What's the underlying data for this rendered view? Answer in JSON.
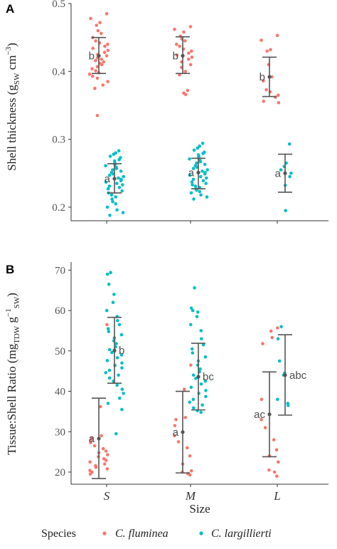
{
  "chart_data": [
    {
      "type": "scatter",
      "panel": "A",
      "ylabel_main": "Shell thickness (g",
      "ylabel_sub": "SW",
      "ylabel_unit": " cm",
      "ylabel_sup": "−3",
      "ylabel_close": ")",
      "ylim": [
        0.18,
        0.5
      ],
      "yticks": [
        0.2,
        0.3,
        0.4,
        0.5
      ],
      "ytick_labels": [
        "0.2",
        "0.3",
        "0.4",
        "0.5"
      ],
      "categories": [
        "S",
        "M",
        "L"
      ],
      "series": [
        {
          "name": "C. fluminea",
          "color": "#F8766D",
          "summary": [
            {
              "category": "S",
              "mean": 0.423,
              "low": 0.397,
              "high": 0.45,
              "letter": "b"
            },
            {
              "category": "M",
              "mean": 0.423,
              "low": 0.397,
              "high": 0.451,
              "letter": "b"
            },
            {
              "category": "L",
              "mean": 0.392,
              "low": 0.363,
              "high": 0.421,
              "letter": "b"
            }
          ],
          "points": [
            {
              "category": "S",
              "y": [
                0.485,
                0.478,
                0.472,
                0.468,
                0.46,
                0.456,
                0.45,
                0.445,
                0.442,
                0.44,
                0.437,
                0.434,
                0.431,
                0.428,
                0.425,
                0.423,
                0.42,
                0.418,
                0.416,
                0.414,
                0.412,
                0.41,
                0.407,
                0.404,
                0.401,
                0.398,
                0.396,
                0.393,
                0.39,
                0.385,
                0.38,
                0.375,
                0.335
              ]
            },
            {
              "category": "M",
              "y": [
                0.466,
                0.462,
                0.458,
                0.452,
                0.448,
                0.445,
                0.44,
                0.437,
                0.433,
                0.43,
                0.427,
                0.424,
                0.421,
                0.418,
                0.414,
                0.41,
                0.406,
                0.4,
                0.395,
                0.372,
                0.368,
                0.366
              ]
            },
            {
              "category": "L",
              "y": [
                0.453,
                0.446,
                0.432,
                0.43,
                0.41,
                0.392,
                0.386,
                0.373,
                0.37,
                0.365,
                0.362,
                0.356,
                0.354
              ]
            }
          ]
        },
        {
          "name": "C. largillierti",
          "color": "#00BFC4",
          "summary": [
            {
              "category": "S",
              "mean": 0.242,
              "low": 0.221,
              "high": 0.264,
              "letter": "a"
            },
            {
              "category": "M",
              "mean": 0.251,
              "low": 0.227,
              "high": 0.272,
              "letter": "a"
            },
            {
              "category": "L",
              "mean": 0.25,
              "low": 0.222,
              "high": 0.278,
              "letter": "a"
            }
          ],
          "points": [
            {
              "category": "S",
              "y": [
                0.283,
                0.28,
                0.278,
                0.275,
                0.273,
                0.27,
                0.268,
                0.265,
                0.263,
                0.261,
                0.259,
                0.257,
                0.255,
                0.253,
                0.251,
                0.249,
                0.247,
                0.245,
                0.243,
                0.241,
                0.239,
                0.237,
                0.235,
                0.233,
                0.231,
                0.229,
                0.227,
                0.224,
                0.221,
                0.218,
                0.215,
                0.212,
                0.208,
                0.205,
                0.2,
                0.196,
                0.192,
                0.188
              ]
            },
            {
              "category": "M",
              "y": [
                0.294,
                0.29,
                0.287,
                0.284,
                0.281,
                0.279,
                0.277,
                0.275,
                0.273,
                0.271,
                0.269,
                0.267,
                0.265,
                0.263,
                0.261,
                0.259,
                0.257,
                0.255,
                0.253,
                0.251,
                0.249,
                0.247,
                0.245,
                0.243,
                0.241,
                0.239,
                0.237,
                0.235,
                0.233,
                0.231,
                0.229,
                0.227,
                0.225,
                0.223,
                0.221,
                0.218,
                0.215,
                0.212
              ]
            },
            {
              "category": "L",
              "y": [
                0.293,
                0.265,
                0.26,
                0.255,
                0.25,
                0.245,
                0.232,
                0.195
              ]
            }
          ]
        }
      ]
    },
    {
      "type": "scatter",
      "panel": "B",
      "ylabel_main": "Tissue:Shell Ratio (mg",
      "ylabel_sub": "TDW",
      "ylabel_unit": " g",
      "ylabel_sup": "−1",
      "ylabel_sub2": "SW",
      "ylabel_close": ")",
      "ylim": [
        17,
        72
      ],
      "yticks": [
        20,
        30,
        40,
        50,
        60,
        70
      ],
      "ytick_labels": [
        "20",
        "30",
        "40",
        "50",
        "60",
        "70"
      ],
      "categories": [
        "S",
        "M",
        "L"
      ],
      "xlabel": "Size",
      "series": [
        {
          "name": "C. fluminea",
          "color": "#F8766D",
          "summary": [
            {
              "category": "S",
              "mean": 28.3,
              "low": 18.4,
              "high": 38.3,
              "letter": "a"
            },
            {
              "category": "M",
              "mean": 29.9,
              "low": 19.8,
              "high": 40.0,
              "letter": "a"
            },
            {
              "category": "L",
              "mean": 34.3,
              "low": 23.8,
              "high": 44.8,
              "letter": "ac"
            }
          ],
          "points": [
            {
              "category": "S",
              "y": [
                56.5,
                36.2,
                29.0,
                28.5,
                28.0,
                27.3,
                26.5,
                25.8,
                25.2,
                24.8,
                24.3,
                23.8,
                23.3,
                22.9,
                22.5,
                22.0,
                21.6,
                21.2,
                20.8,
                20.4,
                20.0,
                19.5
              ]
            },
            {
              "category": "M",
              "y": [
                46.5,
                40.5,
                33.5,
                33.0,
                31.5,
                29.0,
                27.5,
                26.0,
                24.0,
                22.0,
                20.3,
                20.0,
                19.6,
                19.3
              ]
            },
            {
              "category": "L",
              "y": [
                55.7,
                54.9,
                53.3,
                51.8,
                38.0,
                33.0,
                31.0,
                28.0,
                25.5,
                24.0,
                22.5,
                20.5,
                20.0,
                19.0
              ]
            }
          ]
        },
        {
          "name": "C. largillierti",
          "color": "#00BFC4",
          "summary": [
            {
              "category": "S",
              "mean": 50.1,
              "low": 42.0,
              "high": 58.3,
              "letter": "b"
            },
            {
              "category": "M",
              "mean": 43.6,
              "low": 35.4,
              "high": 51.9,
              "letter": "bc"
            },
            {
              "category": "L",
              "mean": 44.0,
              "low": 34.1,
              "high": 54.0,
              "letter": "abc"
            }
          ],
          "points": [
            {
              "category": "S",
              "y": [
                69.4,
                69.0,
                66.5,
                64.0,
                62.0,
                60.0,
                58.5,
                57.5,
                56.5,
                55.5,
                54.8,
                54.0,
                53.2,
                52.5,
                51.8,
                51.0,
                50.3,
                49.6,
                49.0,
                48.3,
                47.6,
                47.0,
                46.4,
                45.8,
                45.2,
                44.6,
                44.0,
                43.3,
                42.5,
                41.5,
                40.5,
                39.5,
                38.3,
                37.0,
                35.5,
                29.5
              ]
            },
            {
              "category": "M",
              "y": [
                65.6,
                60.6,
                60.0,
                59.6,
                58.5,
                56.5,
                55.0,
                53.0,
                51.5,
                50.5,
                49.5,
                48.5,
                47.5,
                46.5,
                45.5,
                44.8,
                44.0,
                43.2,
                42.5,
                41.8,
                41.0,
                40.2,
                39.5,
                38.7,
                38.0,
                37.3,
                36.6,
                35.9,
                35.2,
                34.8
              ]
            },
            {
              "category": "L",
              "y": [
                56.0,
                53.0,
                47.5,
                44.5,
                44.0,
                38.0,
                37.0,
                36.5
              ]
            }
          ]
        }
      ]
    }
  ],
  "legend": {
    "title": "Species",
    "items": [
      "C. fluminea",
      "C. largillierti"
    ]
  }
}
